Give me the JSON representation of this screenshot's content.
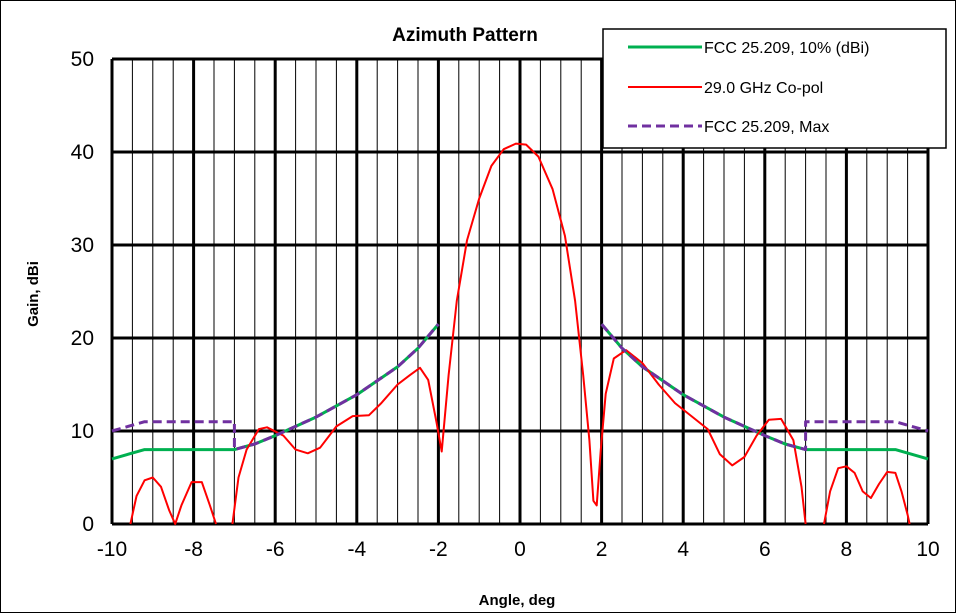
{
  "chart_data": {
    "type": "line",
    "title": "Azimuth Pattern",
    "xlabel": "Angle, deg",
    "ylabel": "Gain, dBi",
    "xlim": [
      -10,
      10
    ],
    "ylim": [
      0,
      50
    ],
    "x_ticks": [
      -10,
      -8,
      -6,
      -4,
      -2,
      0,
      2,
      4,
      6,
      8,
      10
    ],
    "y_ticks": [
      0,
      10,
      20,
      30,
      40,
      50
    ],
    "grid": true,
    "minor_x_grid_step": 0.5,
    "legend": "top-right",
    "series": [
      {
        "name": "FCC 25.209, 10% (dBi)",
        "color": "#00b050",
        "style": "solid",
        "points": [
          [
            -10,
            7
          ],
          [
            -9.2,
            8
          ],
          [
            -7,
            8
          ],
          [
            -6.5,
            8.6
          ],
          [
            -6,
            9.5
          ],
          [
            -5,
            11.5
          ],
          [
            -4,
            13.9
          ],
          [
            -3,
            16.9
          ],
          [
            -2.5,
            18.9
          ],
          [
            -2,
            21.5
          ],
          null,
          [
            2,
            21.5
          ],
          [
            2.5,
            18.9
          ],
          [
            3,
            16.9
          ],
          [
            4,
            13.9
          ],
          [
            5,
            11.5
          ],
          [
            6,
            9.5
          ],
          [
            6.5,
            8.6
          ],
          [
            7,
            8
          ],
          [
            9.2,
            8
          ],
          [
            10,
            7
          ]
        ]
      },
      {
        "name": "29.0 GHz Co-pol",
        "color": "#ff0000",
        "style": "solid",
        "points": [
          [
            -9.55,
            0
          ],
          [
            -9.4,
            3
          ],
          [
            -9.2,
            4.7
          ],
          [
            -9,
            5
          ],
          [
            -8.8,
            4
          ],
          [
            -8.6,
            1.5
          ],
          [
            -8.45,
            0
          ],
          [
            -8.3,
            2
          ],
          [
            -8.05,
            4.5
          ],
          [
            -7.8,
            4.5
          ],
          [
            -7.6,
            2
          ],
          [
            -7.45,
            0
          ],
          null,
          [
            -7.05,
            0
          ],
          [
            -6.9,
            5
          ],
          [
            -6.7,
            8
          ],
          [
            -6.4,
            10.2
          ],
          [
            -6.2,
            10.4
          ],
          [
            -5.8,
            9.5
          ],
          [
            -5.5,
            8
          ],
          [
            -5.2,
            7.6
          ],
          [
            -4.9,
            8.2
          ],
          [
            -4.5,
            10.5
          ],
          [
            -4.1,
            11.6
          ],
          [
            -3.7,
            11.7
          ],
          [
            -3.4,
            13
          ],
          [
            -3,
            15
          ],
          [
            -2.7,
            16
          ],
          [
            -2.45,
            16.8
          ],
          [
            -2.25,
            15.5
          ],
          [
            -2.05,
            11
          ],
          [
            -1.92,
            7.8
          ],
          [
            -1.75,
            16
          ],
          [
            -1.55,
            24
          ],
          [
            -1.3,
            30.5
          ],
          [
            -1,
            35
          ],
          [
            -0.7,
            38.5
          ],
          [
            -0.4,
            40.3
          ],
          [
            -0.1,
            40.9
          ],
          [
            0.15,
            40.8
          ],
          [
            0.45,
            39.5
          ],
          [
            0.8,
            36
          ],
          [
            1.1,
            31
          ],
          [
            1.35,
            24
          ],
          [
            1.55,
            16
          ],
          [
            1.7,
            9
          ],
          [
            1.8,
            2.5
          ],
          [
            1.88,
            2
          ],
          [
            1.98,
            8
          ],
          [
            2.1,
            14
          ],
          [
            2.3,
            17.8
          ],
          [
            2.6,
            18.7
          ],
          [
            3,
            17.3
          ],
          [
            3.4,
            15
          ],
          [
            3.8,
            13
          ],
          [
            4.2,
            11.6
          ],
          [
            4.6,
            10.2
          ],
          [
            4.9,
            7.5
          ],
          [
            5.2,
            6.3
          ],
          [
            5.5,
            7.2
          ],
          [
            5.8,
            9.5
          ],
          [
            6.1,
            11.2
          ],
          [
            6.4,
            11.3
          ],
          [
            6.7,
            9
          ],
          [
            6.9,
            4
          ],
          [
            7,
            0
          ],
          null,
          [
            7.45,
            0
          ],
          [
            7.6,
            3.5
          ],
          [
            7.8,
            6
          ],
          [
            8,
            6.2
          ],
          [
            8.2,
            5.5
          ],
          [
            8.4,
            3.5
          ],
          [
            8.6,
            2.8
          ],
          [
            8.8,
            4.3
          ],
          [
            9,
            5.6
          ],
          [
            9.2,
            5.5
          ],
          [
            9.35,
            3.5
          ],
          [
            9.5,
            1
          ],
          [
            9.55,
            0
          ]
        ]
      },
      {
        "name": "FCC 25.209, Max",
        "color": "#7030a0",
        "style": "dashed",
        "points": [
          [
            -10,
            10
          ],
          [
            -9.2,
            11
          ],
          [
            -7,
            11
          ],
          [
            -7,
            8
          ],
          [
            -6.5,
            8.6
          ],
          [
            -6,
            9.5
          ],
          [
            -5,
            11.5
          ],
          [
            -4,
            13.9
          ],
          [
            -3,
            16.9
          ],
          [
            -2.5,
            18.9
          ],
          [
            -2,
            21.5
          ],
          null,
          [
            2,
            21.5
          ],
          [
            2.5,
            18.9
          ],
          [
            3,
            16.9
          ],
          [
            4,
            13.9
          ],
          [
            5,
            11.5
          ],
          [
            6,
            9.5
          ],
          [
            6.5,
            8.6
          ],
          [
            7,
            8
          ],
          [
            7,
            11
          ],
          [
            9.2,
            11
          ],
          [
            10,
            10
          ]
        ]
      }
    ]
  }
}
